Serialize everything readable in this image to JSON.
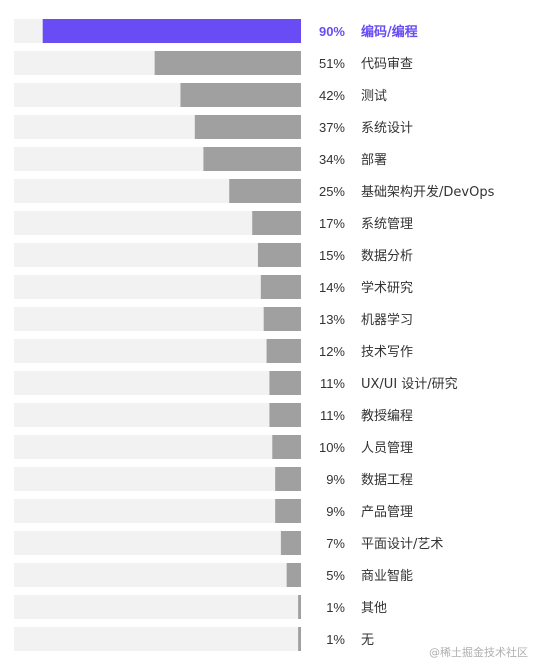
{
  "chart_data": {
    "type": "bar",
    "orientation": "horizontal",
    "categories": [
      "编码/编程",
      "代码审查",
      "测试",
      "系统设计",
      "部署",
      "基础架构开发/DevOps",
      "系统管理",
      "数据分析",
      "学术研究",
      "机器学习",
      "技术写作",
      "UX/UI 设计/研究",
      "教授编程",
      "人员管理",
      "数据工程",
      "产品管理",
      "平面设计/艺术",
      "商业智能",
      "其他",
      "无"
    ],
    "values": [
      90,
      51,
      42,
      37,
      34,
      25,
      17,
      15,
      14,
      13,
      12,
      11,
      11,
      10,
      9,
      9,
      7,
      5,
      1,
      1
    ],
    "value_labels": [
      "90%",
      "51%",
      "42%",
      "37%",
      "34%",
      "25%",
      "17%",
      "15%",
      "14%",
      "13%",
      "12%",
      "11%",
      "11%",
      "10%",
      "9%",
      "9%",
      "7%",
      "5%",
      "1%",
      "1%"
    ],
    "xlim": [
      0,
      100
    ],
    "highlight_index": 0,
    "colors": {
      "highlight": "#6a4cf5",
      "bar": "#a0a0a0",
      "track": "#f2f2f2",
      "text": "#333333"
    }
  },
  "watermark": "@稀土掘金技术社区"
}
